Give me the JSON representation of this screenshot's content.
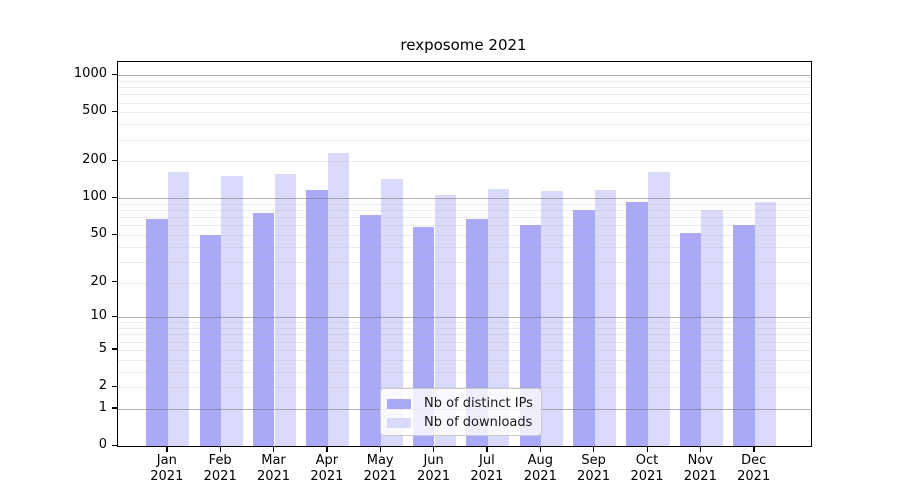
{
  "chart_data": {
    "type": "bar",
    "title": "rexposome 2021",
    "categories": [
      "Jan 2021",
      "Feb 2021",
      "Mar 2021",
      "Apr 2021",
      "May 2021",
      "Jun 2021",
      "Jul 2021",
      "Aug 2021",
      "Sep 2021",
      "Oct 2021",
      "Nov 2021",
      "Dec 2021"
    ],
    "series": [
      {
        "name": "Nb of distinct IPs",
        "color": "#a9a9f7",
        "values": [
          68,
          50,
          76,
          117,
          73,
          58,
          68,
          61,
          81,
          93,
          52,
          61
        ]
      },
      {
        "name": "Nb of downloads",
        "color": "#d9d9f9",
        "values": [
          164,
          151,
          157,
          235,
          143,
          107,
          120,
          114,
          117,
          163,
          80,
          93
        ]
      }
    ],
    "yscale": "log1p",
    "ylim": [
      0,
      1280
    ],
    "y_ticks": [
      0,
      1,
      2,
      5,
      10,
      20,
      50,
      100,
      200,
      500,
      1000
    ],
    "major_grid_values": [
      1,
      10,
      100,
      1000
    ],
    "grid": "on",
    "legend_position": "lower center",
    "xlabel": "",
    "ylabel": ""
  }
}
